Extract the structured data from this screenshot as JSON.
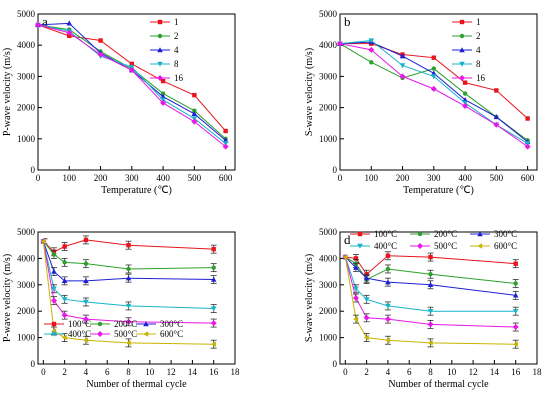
{
  "chart_data": [
    {
      "panel": "a",
      "type": "line",
      "xlabel": "Temperature (℃)",
      "ylabel": "P-wave velocity (m/s)",
      "xlim": [
        0,
        630
      ],
      "ylim": [
        0,
        5000
      ],
      "xticks": [
        0,
        100,
        200,
        300,
        400,
        500,
        600
      ],
      "yticks": [
        0,
        1000,
        2000,
        3000,
        4000,
        5000
      ],
      "legend_position": "top-right",
      "legend_columns": 1,
      "series": [
        {
          "name": "1",
          "color": "#e8141c",
          "marker": "square",
          "x": [
            0,
            100,
            200,
            300,
            400,
            500,
            600
          ],
          "values": [
            4650,
            4300,
            4150,
            3400,
            2850,
            2400,
            1250
          ]
        },
        {
          "name": "2",
          "color": "#2ca02c",
          "marker": "circle",
          "x": [
            0,
            100,
            200,
            300,
            400,
            500,
            600
          ],
          "values": [
            4650,
            4500,
            3800,
            3250,
            2450,
            1900,
            1000
          ]
        },
        {
          "name": "4",
          "color": "#1f1fd6",
          "marker": "triangle",
          "x": [
            0,
            100,
            200,
            300,
            400,
            500,
            600
          ],
          "values": [
            4650,
            4700,
            3750,
            3200,
            2350,
            1800,
            950
          ]
        },
        {
          "name": "8",
          "color": "#17b4c8",
          "marker": "triangle-down",
          "x": [
            0,
            100,
            200,
            300,
            400,
            500,
            600
          ],
          "values": [
            4650,
            4450,
            3650,
            3300,
            2250,
            1650,
            850
          ]
        },
        {
          "name": "16",
          "color": "#e619e6",
          "marker": "diamond",
          "x": [
            0,
            100,
            200,
            300,
            400,
            500,
            600
          ],
          "values": [
            4650,
            4400,
            3700,
            3200,
            2150,
            1550,
            750
          ]
        }
      ]
    },
    {
      "panel": "b",
      "type": "line",
      "xlabel": "Temperature (℃)",
      "ylabel": "S-wave velocity (m/s)",
      "xlim": [
        0,
        630
      ],
      "ylim": [
        0,
        5000
      ],
      "xticks": [
        0,
        100,
        200,
        300,
        400,
        500,
        600
      ],
      "yticks": [
        0,
        1000,
        2000,
        3000,
        4000,
        5000
      ],
      "legend_position": "top-right",
      "legend_columns": 1,
      "series": [
        {
          "name": "1",
          "color": "#e8141c",
          "marker": "square",
          "x": [
            0,
            100,
            200,
            300,
            400,
            500,
            600
          ],
          "values": [
            4050,
            4050,
            3700,
            3600,
            2800,
            2550,
            1650
          ]
        },
        {
          "name": "2",
          "color": "#2ca02c",
          "marker": "circle",
          "x": [
            0,
            100,
            200,
            300,
            400,
            500,
            600
          ],
          "values": [
            4050,
            3450,
            2950,
            3250,
            2450,
            1700,
            950
          ]
        },
        {
          "name": "4",
          "color": "#1f1fd6",
          "marker": "triangle",
          "x": [
            0,
            100,
            200,
            300,
            400,
            500,
            600
          ],
          "values": [
            4050,
            4100,
            3650,
            3100,
            2250,
            1700,
            900
          ]
        },
        {
          "name": "8",
          "color": "#17b4c8",
          "marker": "triangle-down",
          "x": [
            0,
            100,
            200,
            300,
            400,
            500,
            600
          ],
          "values": [
            4050,
            4150,
            3350,
            3000,
            2150,
            1450,
            850
          ]
        },
        {
          "name": "16",
          "color": "#e619e6",
          "marker": "diamond",
          "x": [
            0,
            100,
            200,
            300,
            400,
            500,
            600
          ],
          "values": [
            4050,
            3850,
            3000,
            2600,
            2050,
            1450,
            750
          ]
        }
      ]
    },
    {
      "panel": "c",
      "type": "line",
      "xlabel": "Number of thermal cycle",
      "ylabel": "P-wave velocity (m/s)",
      "xlim": [
        -0.5,
        18
      ],
      "ylim": [
        0,
        5000
      ],
      "xticks": [
        0,
        2,
        4,
        6,
        8,
        10,
        12,
        14,
        16,
        18
      ],
      "yticks": [
        0,
        1000,
        2000,
        3000,
        4000,
        5000
      ],
      "legend_position": "bottom-left",
      "legend_columns": 3,
      "error_bars": true,
      "series": [
        {
          "name": "100°C",
          "color": "#e8141c",
          "marker": "square",
          "x": [
            0,
            1,
            2,
            4,
            8,
            16
          ],
          "values": [
            4650,
            4250,
            4450,
            4700,
            4500,
            4350
          ]
        },
        {
          "name": "200°C",
          "color": "#2ca02c",
          "marker": "circle",
          "x": [
            0,
            1,
            2,
            4,
            8,
            16
          ],
          "values": [
            4650,
            4150,
            3850,
            3800,
            3600,
            3650
          ]
        },
        {
          "name": "300°C",
          "color": "#1f1fd6",
          "marker": "triangle",
          "x": [
            0,
            1,
            2,
            4,
            8,
            16
          ],
          "values": [
            4650,
            3500,
            3150,
            3150,
            3250,
            3200
          ]
        },
        {
          "name": "400°C",
          "color": "#17b4c8",
          "marker": "triangle-down",
          "x": [
            0,
            1,
            2,
            4,
            8,
            16
          ],
          "values": [
            4650,
            2850,
            2450,
            2350,
            2200,
            2100
          ]
        },
        {
          "name": "500°C",
          "color": "#e619e6",
          "marker": "diamond",
          "x": [
            0,
            1,
            2,
            4,
            8,
            16
          ],
          "values": [
            4650,
            2400,
            1850,
            1700,
            1600,
            1550
          ]
        },
        {
          "name": "600°C",
          "color": "#c8b400",
          "marker": "triangle-left",
          "x": [
            0,
            1,
            2,
            4,
            8,
            16
          ],
          "values": [
            4650,
            1250,
            1000,
            900,
            800,
            750
          ]
        }
      ]
    },
    {
      "panel": "d",
      "type": "line",
      "xlabel": "Number of thermal cycle",
      "ylabel": "S-wave velocity (m/s)",
      "xlim": [
        -0.5,
        18
      ],
      "ylim": [
        0,
        5000
      ],
      "xticks": [
        0,
        2,
        4,
        6,
        8,
        10,
        12,
        14,
        16,
        18
      ],
      "yticks": [
        0,
        1000,
        2000,
        3000,
        4000,
        5000
      ],
      "legend_position": "top",
      "legend_columns": 3,
      "error_bars": true,
      "series": [
        {
          "name": "100°C",
          "color": "#e8141c",
          "marker": "square",
          "x": [
            0,
            1,
            2,
            4,
            8,
            16
          ],
          "values": [
            4050,
            4000,
            3400,
            4100,
            4050,
            3800
          ]
        },
        {
          "name": "200°C",
          "color": "#2ca02c",
          "marker": "circle",
          "x": [
            0,
            1,
            2,
            4,
            8,
            16
          ],
          "values": [
            4050,
            3800,
            3200,
            3600,
            3400,
            3050
          ]
        },
        {
          "name": "300°C",
          "color": "#1f1fd6",
          "marker": "triangle",
          "x": [
            0,
            1,
            2,
            4,
            8,
            16
          ],
          "values": [
            4050,
            3650,
            3250,
            3100,
            3000,
            2600
          ]
        },
        {
          "name": "400°C",
          "color": "#17b4c8",
          "marker": "triangle-down",
          "x": [
            0,
            1,
            2,
            4,
            8,
            16
          ],
          "values": [
            4050,
            2850,
            2450,
            2200,
            2000,
            2000
          ]
        },
        {
          "name": "500°C",
          "color": "#e619e6",
          "marker": "diamond",
          "x": [
            0,
            1,
            2,
            4,
            8,
            16
          ],
          "values": [
            4050,
            2500,
            1750,
            1700,
            1500,
            1400
          ]
        },
        {
          "name": "600°C",
          "color": "#c8b400",
          "marker": "triangle-left",
          "x": [
            0,
            1,
            2,
            4,
            8,
            16
          ],
          "values": [
            4050,
            1700,
            1000,
            900,
            800,
            750
          ]
        }
      ]
    }
  ]
}
